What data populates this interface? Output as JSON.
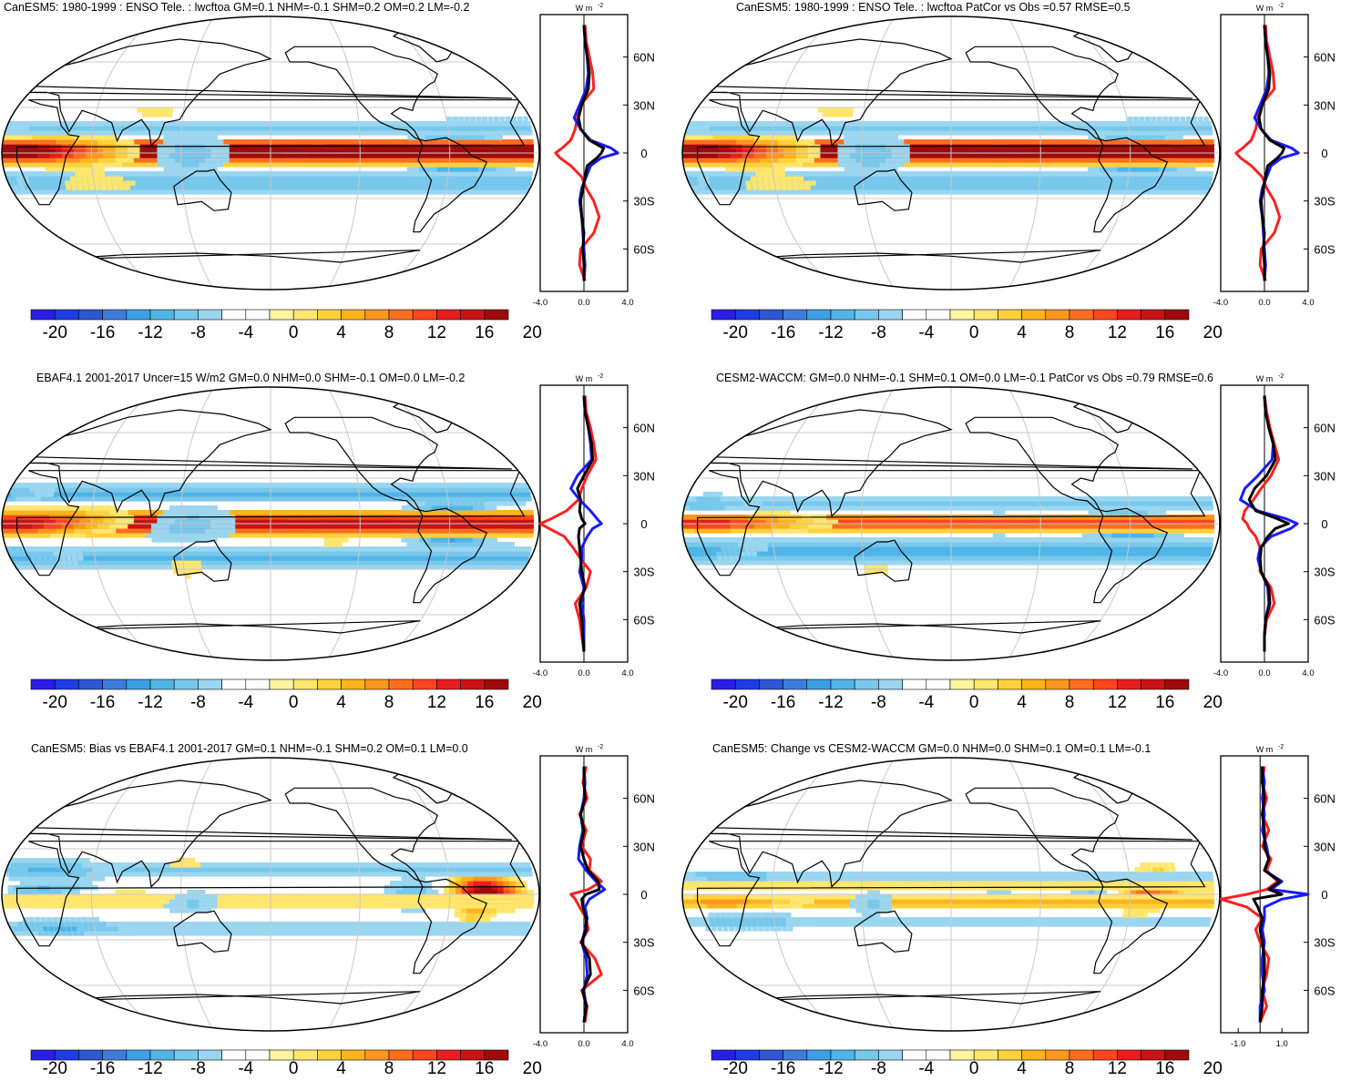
{
  "figure": {
    "colorbar": {
      "colors": [
        "#2a1ee6",
        "#1e3ce6",
        "#2d58d2",
        "#3c7ddc",
        "#3ca0e6",
        "#50b4e6",
        "#78c8ec",
        "#9ad6f0",
        "#ffffff",
        "#ffffff",
        "#fff5a0",
        "#ffe66e",
        "#ffd23c",
        "#ffb41e",
        "#ff961e",
        "#ff6e1e",
        "#ff461e",
        "#e61e1e",
        "#c81414",
        "#a00a0a"
      ],
      "tick_labels": [
        "-20",
        "-16",
        "-12",
        "-8",
        "-4",
        "0",
        "4",
        "8",
        "12",
        "16",
        "20"
      ]
    },
    "profile_axis": {
      "unit": "W m",
      "unit_sup": "-2",
      "lat_labels": [
        "60N",
        "30N",
        "0",
        "30S",
        "60S"
      ]
    }
  },
  "chart_data": [
    {
      "type": "heatmap",
      "title": "CanESM5: 1980-1999 : ENSO Tele. : lwcftoa GM=0.1 NHM=-0.1 SHM=0.2 OM=0.2 LM=-0.2",
      "xtick_labels": [
        "-4.0",
        "0.0",
        "4.0"
      ],
      "xlim": [
        -4,
        4
      ],
      "lat": [
        80,
        70,
        60,
        50,
        40,
        30,
        22,
        15,
        8,
        3,
        0,
        -3,
        -8,
        -15,
        -22,
        -30,
        -40,
        -50,
        -60,
        -70,
        -80
      ],
      "series": [
        {
          "name": "model",
          "color": "#ff2020",
          "values": [
            0.1,
            0.2,
            0.5,
            0.8,
            0.9,
            -0.3,
            -0.6,
            -0.8,
            -1.2,
            -2.0,
            -2.6,
            -2.2,
            -1.2,
            -0.2,
            0.2,
            0.9,
            1.4,
            0.9,
            -0.3,
            -0.4,
            0.1
          ]
        },
        {
          "name": "obs",
          "color": "#1a1aff",
          "values": [
            0,
            0.1,
            0.3,
            0.4,
            0.2,
            -0.4,
            -0.9,
            -0.3,
            0.6,
            2.5,
            3.1,
            1.6,
            0.6,
            0.2,
            -0.2,
            -0.4,
            -0.2,
            -0.1,
            0,
            0.1,
            0
          ]
        },
        {
          "name": "zonal-mean",
          "color": "#000000",
          "values": [
            0,
            0.1,
            0.3,
            0.5,
            0.4,
            -0.2,
            -0.5,
            -0.3,
            0.5,
            1.8,
            1.6,
            1.2,
            0.3,
            0.1,
            -0.1,
            -0.3,
            -0.2,
            0,
            -0.1,
            0,
            0
          ]
        }
      ]
    },
    {
      "type": "heatmap",
      "title": "CanESM5: 1980-1999 : ENSO Tele. : lwcftoa PatCor vs Obs =0.57 RMSE=0.5",
      "xtick_labels": [
        "-4.0",
        "0.0",
        "4.0"
      ],
      "xlim": [
        -4,
        4
      ],
      "lat": [
        80,
        70,
        60,
        50,
        40,
        30,
        22,
        15,
        8,
        3,
        0,
        -3,
        -8,
        -15,
        -22,
        -30,
        -40,
        -50,
        -60,
        -70,
        -80
      ],
      "series": [
        {
          "name": "model",
          "color": "#ff2020",
          "values": [
            0.1,
            0.2,
            0.5,
            0.8,
            0.9,
            -0.3,
            -0.6,
            -0.8,
            -1.2,
            -2.0,
            -2.6,
            -2.2,
            -1.2,
            -0.2,
            0.2,
            0.9,
            1.4,
            0.9,
            -0.3,
            -0.4,
            0.1
          ]
        },
        {
          "name": "obs",
          "color": "#1a1aff",
          "values": [
            0,
            0.1,
            0.3,
            0.4,
            0.2,
            -0.4,
            -0.9,
            -0.3,
            0.6,
            2.5,
            3.1,
            1.6,
            0.6,
            0.2,
            -0.2,
            -0.4,
            -0.2,
            -0.1,
            0,
            0.1,
            0
          ]
        },
        {
          "name": "zonal-mean",
          "color": "#000000",
          "values": [
            0,
            0.1,
            0.3,
            0.5,
            0.4,
            -0.2,
            -0.5,
            -0.3,
            0.5,
            1.8,
            1.6,
            1.2,
            0.3,
            0.1,
            -0.1,
            -0.3,
            -0.2,
            0,
            -0.1,
            0,
            0
          ]
        }
      ]
    },
    {
      "type": "heatmap",
      "title": "EBAF4.1 2001-2017 Uncer=15 W/m2 GM=0.0 NHM=0.0 SHM=-0.1 OM=0.0 LM=-0.2",
      "xtick_labels": [
        "-4.0",
        "0.0",
        "4.0"
      ],
      "xlim": [
        -4,
        4
      ],
      "lat": [
        80,
        70,
        60,
        50,
        40,
        30,
        22,
        15,
        8,
        3,
        0,
        -3,
        -8,
        -15,
        -22,
        -30,
        -40,
        -50,
        -60,
        -70,
        -80
      ],
      "series": [
        {
          "name": "model",
          "color": "#ff2020",
          "values": [
            0.1,
            0.2,
            0.6,
            0.9,
            1.1,
            0.3,
            -0.2,
            -0.5,
            -1.6,
            -3.0,
            -4.0,
            -3.2,
            -1.8,
            -1.0,
            -0.3,
            0.6,
            0.2,
            -0.8,
            -0.4,
            -0.2,
            0
          ]
        },
        {
          "name": "obs",
          "color": "#1a1aff",
          "values": [
            0,
            0.1,
            0.4,
            0.6,
            0.7,
            -0.6,
            -1.2,
            -0.4,
            0.6,
            1.2,
            1.6,
            0.8,
            0.3,
            -0.2,
            -0.2,
            -0.4,
            0,
            -0.2,
            0,
            0,
            0
          ]
        },
        {
          "name": "zonal-mean",
          "color": "#000000",
          "values": [
            0,
            0.1,
            0.4,
            0.7,
            0.8,
            0,
            -0.6,
            -0.3,
            -0.4,
            -0.2,
            0.1,
            -0.4,
            -0.5,
            -0.4,
            -0.3,
            -0.2,
            0.1,
            -0.4,
            -0.2,
            -0.1,
            0
          ]
        }
      ]
    },
    {
      "type": "heatmap",
      "title": "CESM2-WACCM: GM=0.0 NHM=-0.1 SHM=0.1 OM=0.0 LM=-0.1 PatCor vs Obs =0.79 RMSE=0.6",
      "xtick_labels": [
        "-4.0",
        "0.0",
        "4.0"
      ],
      "xlim": [
        -4,
        4
      ],
      "lat": [
        80,
        70,
        60,
        50,
        40,
        30,
        22,
        15,
        8,
        3,
        0,
        -3,
        -8,
        -15,
        -22,
        -30,
        -40,
        -50,
        -60,
        -70,
        -80
      ],
      "series": [
        {
          "name": "model",
          "color": "#ff2020",
          "values": [
            0,
            0.2,
            0.5,
            0.9,
            1.3,
            0.6,
            -0.3,
            -1.0,
            -1.8,
            -2.0,
            -1.6,
            -1.4,
            -0.8,
            -0.4,
            -0.4,
            -0.4,
            0.6,
            0.9,
            0.2,
            0,
            0
          ]
        },
        {
          "name": "obs",
          "color": "#1a1aff",
          "values": [
            0,
            0.1,
            0.4,
            0.8,
            0.7,
            -0.6,
            -1.8,
            -2.2,
            -0.6,
            2.0,
            3.0,
            2.4,
            0.6,
            -0.4,
            -0.6,
            -0.3,
            0.3,
            0.4,
            0.1,
            0,
            0
          ]
        },
        {
          "name": "zonal-mean",
          "color": "#000000",
          "values": [
            0,
            0.1,
            0.4,
            0.8,
            1.0,
            0.2,
            -0.9,
            -1.4,
            -0.8,
            1.2,
            2.2,
            1.0,
            0.3,
            -0.3,
            -0.4,
            -0.3,
            0.4,
            0.5,
            0.1,
            0,
            0
          ]
        }
      ]
    },
    {
      "type": "heatmap",
      "title": "CanESM5: Bias vs EBAF4.1 2001-2017 GM=0.1 NHM=-0.1 SHM=0.2 OM=0.1 LM=0.0",
      "xtick_labels": [
        "-4.0",
        "0.0",
        "4.0"
      ],
      "xlim": [
        -4,
        4
      ],
      "lat": [
        80,
        70,
        60,
        50,
        40,
        30,
        22,
        15,
        8,
        3,
        0,
        -3,
        -8,
        -15,
        -22,
        -30,
        -40,
        -50,
        -60,
        -70,
        -80
      ],
      "series": [
        {
          "name": "model",
          "color": "#ff2020",
          "values": [
            0.2,
            -0.1,
            0.3,
            -0.4,
            0.2,
            -0.2,
            0.6,
            0.5,
            1.6,
            0.4,
            -1.2,
            -0.8,
            -0.4,
            0.2,
            0.4,
            -0.3,
            1.0,
            1.6,
            -0.2,
            0.3,
            0.1
          ]
        },
        {
          "name": "obs",
          "color": "#1a1aff",
          "values": [
            0,
            0.1,
            0,
            -0.3,
            -0.1,
            -0.4,
            -0.5,
            0.2,
            1.1,
            1.9,
            1.2,
            0.5,
            0.1,
            0.3,
            0.1,
            -0.2,
            0.2,
            0.3,
            0,
            0.2,
            0
          ]
        },
        {
          "name": "zonal-mean",
          "color": "#000000",
          "values": [
            0,
            0,
            0.1,
            -0.3,
            0,
            -0.3,
            0,
            0.4,
            1.3,
            1.4,
            0.2,
            -0.2,
            -0.1,
            0.2,
            0.2,
            -0.2,
            0.5,
            0.6,
            -0.1,
            0.2,
            0
          ]
        }
      ]
    },
    {
      "type": "heatmap",
      "title": "CanESM5: Change vs CESM2-WACCM GM=0.0 NHM=0.0 SHM=0.1 OM=0.1 LM=-0.1",
      "xtick_labels": [
        "-1.0",
        "1.0"
      ],
      "xlim": [
        -1.8,
        2.2
      ],
      "lat": [
        80,
        70,
        60,
        50,
        40,
        30,
        22,
        15,
        8,
        3,
        0,
        -3,
        -8,
        -15,
        -22,
        -30,
        -40,
        -50,
        -60,
        -70,
        -80
      ],
      "series": [
        {
          "name": "model",
          "color": "#ff2020",
          "values": [
            0.2,
            0.1,
            0.3,
            0.1,
            0.4,
            0.1,
            0.5,
            0.3,
            0.8,
            0.3,
            -0.6,
            -1.8,
            -0.6,
            0.1,
            -0.2,
            0,
            0.4,
            0.3,
            0.1,
            0.3,
            0
          ]
        },
        {
          "name": "obs",
          "color": "#1a1aff",
          "values": [
            0.1,
            0.2,
            0.1,
            0.2,
            0.1,
            0.3,
            0.4,
            0.2,
            1.0,
            0.5,
            2.2,
            1.0,
            0.2,
            0.2,
            0.1,
            0.2,
            0.1,
            0.1,
            0.2,
            0,
            0
          ]
        },
        {
          "name": "zonal-mean",
          "color": "#000000",
          "values": [
            0.1,
            0.1,
            0.2,
            0.1,
            0.2,
            0.2,
            0.4,
            0.2,
            0.9,
            0.4,
            1.0,
            -0.3,
            -0.1,
            0.1,
            0,
            0.1,
            0.2,
            0.2,
            0.1,
            0.1,
            0
          ]
        }
      ]
    }
  ]
}
